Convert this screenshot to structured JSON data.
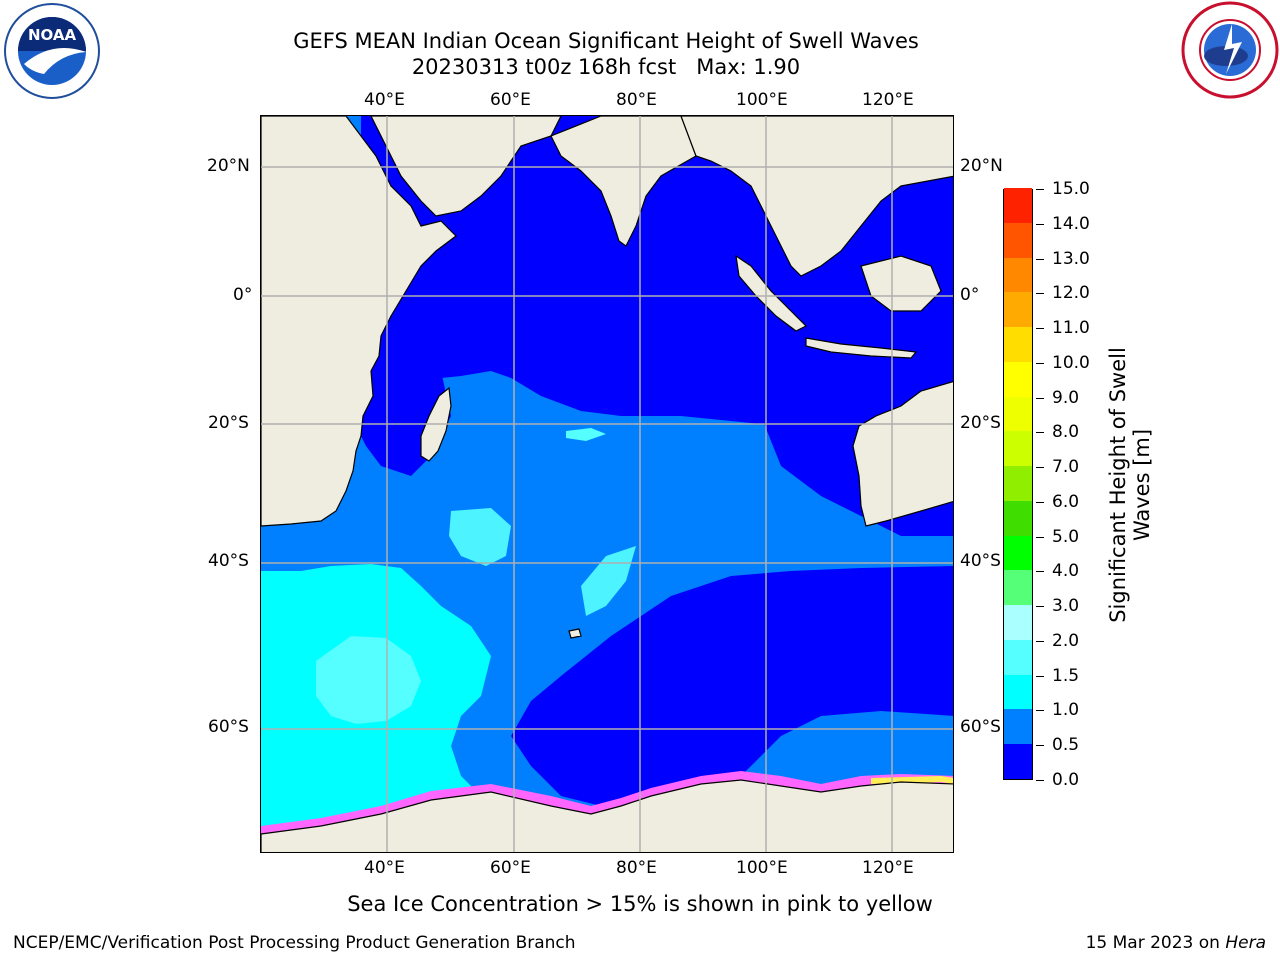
{
  "title": {
    "line1": "GEFS MEAN Indian Ocean Significant Height of Swell Waves",
    "line2": "20230313 t00z 168h fcst   Max: 1.90"
  },
  "logos": {
    "left": "noaa-logo",
    "right": "national-weather-service-logo"
  },
  "map": {
    "region": "Indian Ocean",
    "lon_ticks": [
      "40°E",
      "60°E",
      "80°E",
      "100°E",
      "120°E"
    ],
    "lat_ticks": [
      "20°N",
      "0°",
      "20°S",
      "40°S",
      "60°S"
    ],
    "colors": {
      "land": "#eeeddf",
      "ocean_0_0_5": "#0000ff",
      "ocean_0_5_1_0": "#0080ff",
      "ocean_1_0_1_5": "#00ffff",
      "ocean_1_5_2_0": "#55ffff",
      "ocean_2_0_2_5": "#aaffff",
      "sea_ice": "#ff66ff",
      "grid": "#b0b0b0"
    }
  },
  "colorbar": {
    "label": "Significant Height of Swell\nWaves [m]",
    "ticks": [
      "0.0",
      "0.5",
      "1.0",
      "1.5",
      "2.0",
      "3.0",
      "4.0",
      "5.0",
      "6.0",
      "7.0",
      "8.0",
      "9.0",
      "10.0",
      "11.0",
      "12.0",
      "13.0",
      "14.0",
      "15.0"
    ],
    "colors": [
      "#0000ff",
      "#0080ff",
      "#00ffff",
      "#55ffff",
      "#aaffff",
      "#55ff77",
      "#00ff00",
      "#40dd00",
      "#90ee00",
      "#ccff00",
      "#eeff00",
      "#ffff00",
      "#ffdd00",
      "#ffaa00",
      "#ff8800",
      "#ff5500",
      "#ff2200",
      "#ff0000"
    ]
  },
  "note": "Sea Ice Concentration > 15% is shown in pink to yellow",
  "footer": {
    "left": "NCEP/EMC/Verification Post Processing Product Generation Branch",
    "date": "15 Mar 2023 on ",
    "machine": "Hera"
  }
}
